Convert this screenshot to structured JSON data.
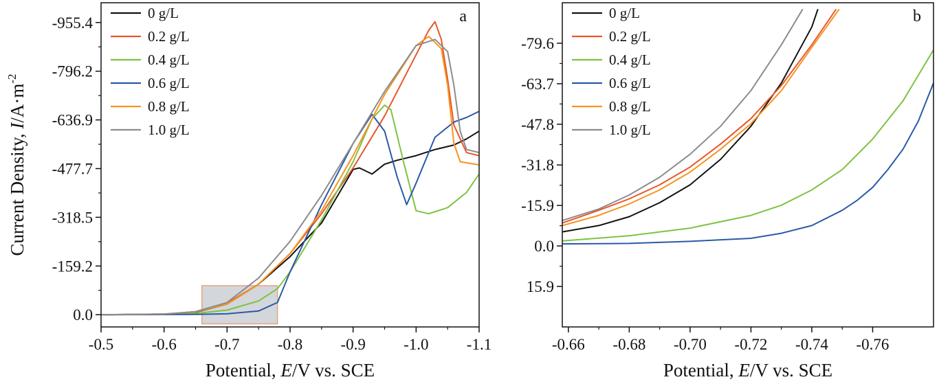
{
  "chart_data": [
    {
      "panel_label": "a",
      "type": "line",
      "xlabel": "Potential, E/V vs. SCE",
      "ylabel": "Current Density, I/A·m⁻²",
      "xlim": [
        -0.5,
        -1.1
      ],
      "ylim": [
        40,
        -1020
      ],
      "xticks": [
        "-0.5",
        "-0.6",
        "-0.7",
        "-0.8",
        "-0.9",
        "-1.0",
        "-1.1"
      ],
      "yticks": [
        "-955.4",
        "-796.2",
        "-636.9",
        "-477.7",
        "-318.5",
        "-159.2",
        "0.0"
      ],
      "legend_position": "top-left",
      "inset_box": {
        "x": [
          -0.66,
          -0.78
        ],
        "y": [
          -95,
          30
        ]
      },
      "series": [
        {
          "name": "0 g/L",
          "color": "#111111",
          "x": [
            -0.5,
            -0.6,
            -0.65,
            -0.7,
            -0.75,
            -0.8,
            -0.85,
            -0.9,
            -0.91,
            -0.93,
            -0.95,
            -0.97,
            -1.0,
            -1.03,
            -1.06,
            -1.08,
            -1.1
          ],
          "y": [
            0,
            -2,
            -8,
            -35,
            -100,
            -190,
            -300,
            -475,
            -480,
            -460,
            -492,
            -505,
            -520,
            -540,
            -555,
            -575,
            -600
          ]
        },
        {
          "name": "0.2 g/L",
          "color": "#e8562a",
          "x": [
            -0.5,
            -0.6,
            -0.65,
            -0.7,
            -0.75,
            -0.8,
            -0.85,
            -0.9,
            -0.95,
            -1.0,
            -1.02,
            -1.03,
            -1.04,
            -1.05,
            -1.06,
            -1.08,
            -1.1
          ],
          "y": [
            0,
            -2,
            -10,
            -38,
            -100,
            -200,
            -330,
            -480,
            -650,
            -850,
            -930,
            -958,
            -900,
            -770,
            -620,
            -530,
            -520
          ]
        },
        {
          "name": "0.4 g/L",
          "color": "#7dc242",
          "x": [
            -0.5,
            -0.6,
            -0.65,
            -0.7,
            -0.75,
            -0.78,
            -0.8,
            -0.85,
            -0.9,
            -0.93,
            -0.95,
            -0.96,
            -0.98,
            -1.0,
            -1.02,
            -1.05,
            -1.08,
            -1.1
          ],
          "y": [
            0,
            -1,
            -4,
            -15,
            -45,
            -85,
            -140,
            -310,
            -500,
            -640,
            -685,
            -670,
            -500,
            -340,
            -330,
            -350,
            -400,
            -460
          ]
        },
        {
          "name": "0.6 g/L",
          "color": "#2a59a8",
          "x": [
            -0.5,
            -0.6,
            -0.65,
            -0.7,
            -0.75,
            -0.78,
            -0.8,
            -0.85,
            -0.9,
            -0.93,
            -0.95,
            -0.97,
            -0.985,
            -1.0,
            -1.03,
            -1.06,
            -1.08,
            -1.1
          ],
          "y": [
            0,
            -0.5,
            -1,
            -3,
            -12,
            -40,
            -140,
            -360,
            -560,
            -655,
            -600,
            -450,
            -360,
            -430,
            -580,
            -630,
            -645,
            -665
          ]
        },
        {
          "name": "0.8 g/L",
          "color": "#f7931e",
          "x": [
            -0.5,
            -0.6,
            -0.65,
            -0.7,
            -0.75,
            -0.8,
            -0.85,
            -0.9,
            -0.95,
            -1.0,
            -1.02,
            -1.04,
            -1.05,
            -1.06,
            -1.07,
            -1.1
          ],
          "y": [
            0,
            -2,
            -9,
            -35,
            -100,
            -200,
            -340,
            -520,
            -720,
            -880,
            -910,
            -870,
            -750,
            -560,
            -500,
            -490
          ]
        },
        {
          "name": "1.0 g/L",
          "color": "#8c8c8c",
          "x": [
            -0.5,
            -0.6,
            -0.65,
            -0.7,
            -0.75,
            -0.8,
            -0.85,
            -0.9,
            -0.95,
            -1.0,
            -1.03,
            -1.05,
            -1.06,
            -1.07,
            -1.08,
            -1.1
          ],
          "y": [
            0,
            -2,
            -10,
            -40,
            -120,
            -240,
            -390,
            -560,
            -730,
            -880,
            -900,
            -860,
            -750,
            -600,
            -540,
            -530
          ]
        }
      ]
    },
    {
      "panel_label": "b",
      "type": "line",
      "xlabel": "Potential, E/V vs. SCE",
      "ylabel": "",
      "xlim": [
        -0.658,
        -0.78
      ],
      "ylim": [
        31.8,
        -95.5
      ],
      "xticks": [
        "-0.66",
        "-0.68",
        "-0.70",
        "-0.72",
        "-0.74",
        "-0.76"
      ],
      "yticks": [
        "-79.6",
        "-63.7",
        "-47.8",
        "-31.8",
        "-15.9",
        "0.0",
        "15.9"
      ],
      "legend_position": "top-left",
      "series": [
        {
          "name": "0 g/L",
          "color": "#111111",
          "x": [
            -0.658,
            -0.67,
            -0.68,
            -0.69,
            -0.7,
            -0.71,
            -0.72,
            -0.73,
            -0.74,
            -0.742
          ],
          "y": [
            -5.5,
            -8,
            -11.5,
            -17,
            -24,
            -34,
            -47,
            -64,
            -86,
            -93
          ]
        },
        {
          "name": "0.2 g/L",
          "color": "#e8562a",
          "x": [
            -0.658,
            -0.67,
            -0.68,
            -0.69,
            -0.7,
            -0.71,
            -0.72,
            -0.73,
            -0.74,
            -0.748
          ],
          "y": [
            -9,
            -14,
            -18.5,
            -24,
            -31,
            -40,
            -50,
            -63,
            -79,
            -93
          ]
        },
        {
          "name": "0.4 g/L",
          "color": "#7dc242",
          "x": [
            -0.658,
            -0.68,
            -0.7,
            -0.72,
            -0.73,
            -0.74,
            -0.75,
            -0.76,
            -0.77,
            -0.78
          ],
          "y": [
            -2,
            -4,
            -7,
            -12,
            -16,
            -22,
            -30,
            -42,
            -57,
            -77
          ]
        },
        {
          "name": "0.6 g/L",
          "color": "#2a59a8",
          "x": [
            -0.658,
            -0.68,
            -0.7,
            -0.72,
            -0.73,
            -0.74,
            -0.75,
            -0.755,
            -0.76,
            -0.765,
            -0.77,
            -0.775,
            -0.78
          ],
          "y": [
            -0.8,
            -1,
            -1.8,
            -3,
            -5,
            -8,
            -14,
            -18,
            -23,
            -30,
            -38,
            -49,
            -64
          ]
        },
        {
          "name": "0.8 g/L",
          "color": "#f7931e",
          "x": [
            -0.658,
            -0.67,
            -0.68,
            -0.69,
            -0.7,
            -0.71,
            -0.72,
            -0.73,
            -0.74,
            -0.749
          ],
          "y": [
            -8,
            -12,
            -16.5,
            -22,
            -29,
            -38,
            -48,
            -61,
            -78,
            -93
          ]
        },
        {
          "name": "1.0 g/L",
          "color": "#8c8c8c",
          "x": [
            -0.658,
            -0.67,
            -0.68,
            -0.69,
            -0.7,
            -0.71,
            -0.72,
            -0.73,
            -0.737
          ],
          "y": [
            -10,
            -14.5,
            -20,
            -27,
            -36,
            -47,
            -61,
            -79,
            -93
          ]
        }
      ]
    }
  ]
}
